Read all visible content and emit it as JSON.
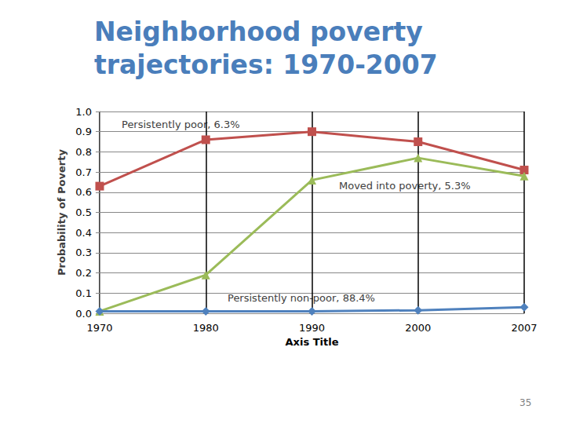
{
  "chart_data": {
    "type": "line",
    "title": "Neighborhood poverty trajectories: 1970-2007",
    "x_label": "Axis Title",
    "y_label": "Probability of Poverty",
    "footer": "35",
    "categories": [
      "1970",
      "1980",
      "1990",
      "2000",
      "2007"
    ],
    "series": [
      {
        "name": "Persistently poor, 6.3%",
        "color": "#C0504D",
        "marker": "square",
        "values": [
          0.63,
          0.86,
          0.9,
          0.85,
          0.71
        ]
      },
      {
        "name": "Moved into poverty, 5.3%",
        "color": "#9BBB59",
        "marker": "triangle",
        "values": [
          0.01,
          0.19,
          0.66,
          0.77,
          0.68
        ]
      },
      {
        "name": "Persistently non-poor, 88.4%",
        "color": "#4F81BD",
        "marker": "diamond",
        "values": [
          0.01,
          0.01,
          0.01,
          0.015,
          0.03
        ]
      }
    ],
    "ylim": [
      0,
      1
    ],
    "yticks": [
      {
        "value": 0,
        "label": "0.0"
      },
      0.1,
      0.2,
      0.3,
      0.4,
      0.5,
      0.6,
      0.7,
      0.8,
      0.9,
      {
        "value": 1,
        "label": "1.0"
      }
    ],
    "grid": true
  }
}
